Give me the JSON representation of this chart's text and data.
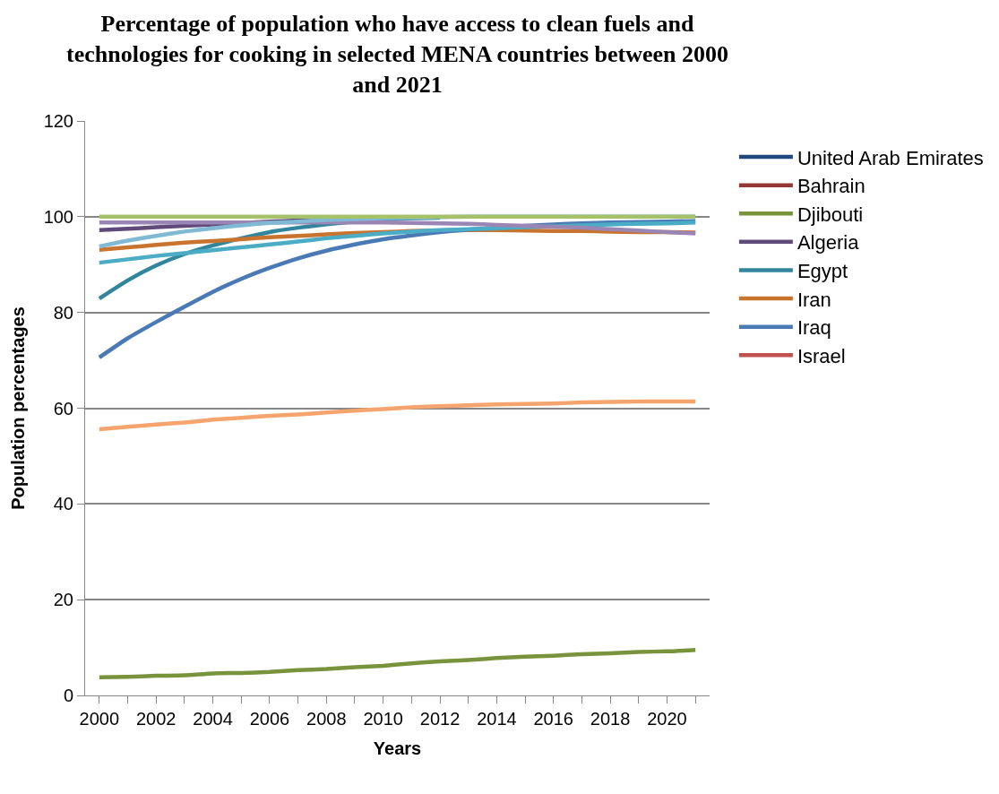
{
  "chart_data": {
    "type": "line",
    "title": "Percentage of population who have access to clean fuels and technologies for cooking in selected MENA countries between 2000 and 2021",
    "xlabel": "Years",
    "ylabel": "Population percentages",
    "x": [
      2000,
      2001,
      2002,
      2003,
      2004,
      2005,
      2006,
      2007,
      2008,
      2009,
      2010,
      2011,
      2012,
      2013,
      2014,
      2015,
      2016,
      2017,
      2018,
      2019,
      2020,
      2021
    ],
    "xlim": [
      1999.5,
      2021.5
    ],
    "xticks": [
      2000,
      {
        "value": 2001,
        "label": null
      },
      2002,
      {
        "value": 2003,
        "label": null
      },
      2004,
      {
        "value": 2005,
        "label": null
      },
      2006,
      {
        "value": 2007,
        "label": null
      },
      2008,
      {
        "value": 2009,
        "label": null
      },
      2010,
      {
        "value": 2011,
        "label": null
      },
      2012,
      {
        "value": 2013,
        "label": null
      },
      2014,
      {
        "value": 2015,
        "label": null
      },
      2016,
      {
        "value": 2017,
        "label": null
      },
      2018,
      {
        "value": 2019,
        "label": null
      },
      2020,
      {
        "value": 2021,
        "label": null
      }
    ],
    "ylim": [
      0,
      120
    ],
    "yticks": [
      0,
      20,
      40,
      60,
      80,
      100,
      120
    ],
    "grid": "y",
    "legend": "right",
    "line_style": "solid",
    "marker": "none",
    "series": [
      {
        "name": "United Arab Emirates",
        "color": "#1f497d",
        "values": [
          null,
          null,
          null,
          null,
          null,
          null,
          null,
          null,
          null,
          null,
          null,
          null,
          null,
          null,
          null,
          null,
          null,
          null,
          null,
          null,
          null,
          null
        ]
      },
      {
        "name": "Bahrain",
        "color": "#953735",
        "values": [
          null,
          null,
          null,
          null,
          null,
          null,
          null,
          null,
          null,
          null,
          null,
          null,
          null,
          null,
          null,
          null,
          null,
          null,
          null,
          null,
          null,
          null
        ]
      },
      {
        "name": "Djibouti",
        "color": "#77933c",
        "values": [
          3.8,
          3.9,
          4.1,
          4.2,
          4.6,
          4.7,
          4.9,
          5.3,
          5.5,
          5.9,
          6.2,
          6.7,
          7.1,
          7.4,
          7.8,
          8.1,
          8.3,
          8.6,
          8.8,
          9.1,
          9.2,
          9.5
        ]
      },
      {
        "name": "Algeria",
        "color": "#604a7b",
        "values": [
          97.2,
          97.5,
          97.8,
          98.1,
          98.4,
          98.7,
          99.0,
          99.2,
          99.4,
          99.6,
          99.7,
          99.8,
          99.9,
          null,
          null,
          null,
          null,
          null,
          null,
          null,
          null,
          null
        ]
      },
      {
        "name": "Egypt",
        "color": "#31859c",
        "values": [
          82.9,
          86.7,
          89.8,
          92.2,
          94.0,
          95.5,
          96.8,
          97.7,
          98.4,
          99.0,
          99.4,
          99.7,
          99.8,
          null,
          null,
          null,
          null,
          null,
          null,
          null,
          null,
          null
        ]
      },
      {
        "name": "Iran",
        "color": "#c8742f",
        "values": [
          93.1,
          93.6,
          94.1,
          94.6,
          94.9,
          95.3,
          95.7,
          96.0,
          96.3,
          96.6,
          96.8,
          97.0,
          97.1,
          97.2,
          97.2,
          97.1,
          97.0,
          97.0,
          96.9,
          96.8,
          96.8,
          96.7
        ]
      },
      {
        "name": "Iraq",
        "color": "#4a7ab5",
        "values": [
          70.6,
          74.6,
          78.0,
          81.2,
          84.3,
          87.0,
          89.3,
          91.3,
          92.9,
          94.2,
          95.3,
          96.1,
          96.8,
          97.3,
          97.7,
          98.1,
          98.4,
          98.6,
          98.8,
          98.9,
          99.0,
          99.1
        ]
      },
      {
        "name": "Israel",
        "color": "#c0504d",
        "values": [
          null,
          null,
          null,
          null,
          null,
          null,
          null,
          null,
          null,
          null,
          null,
          null,
          null,
          null,
          null,
          null,
          null,
          null,
          null,
          null,
          null,
          null
        ]
      },
      {
        "color": "#4bacc6",
        "values": [
          90.4,
          91.1,
          91.8,
          92.4,
          93.0,
          93.6,
          94.2,
          94.8,
          95.5,
          96.0,
          96.5,
          96.9,
          97.2,
          97.4,
          97.6,
          97.8,
          98.0,
          98.2,
          98.4,
          98.5,
          98.6,
          98.8
        ]
      },
      {
        "color": "#f5a46e",
        "values": [
          55.6,
          56.1,
          56.6,
          57.0,
          57.6,
          58.0,
          58.4,
          58.7,
          59.1,
          59.5,
          59.8,
          60.2,
          60.4,
          60.6,
          60.8,
          60.9,
          61.0,
          61.2,
          61.3,
          61.4,
          61.4,
          61.4
        ]
      },
      {
        "color": "#9a86b4",
        "values": [
          98.8,
          98.8,
          98.8,
          98.8,
          98.8,
          98.8,
          98.8,
          98.8,
          98.8,
          98.8,
          98.8,
          98.7,
          98.6,
          98.5,
          98.3,
          98.1,
          97.9,
          97.7,
          97.4,
          97.1,
          96.8,
          96.5
        ]
      },
      {
        "color": "#7fb9d3",
        "values": [
          93.8,
          95.0,
          96.0,
          96.9,
          97.6,
          98.2,
          98.7,
          99.0,
          99.3,
          99.5,
          99.7,
          99.8,
          99.9,
          100,
          100,
          100,
          100,
          100,
          100,
          100,
          100,
          100
        ]
      },
      {
        "color": "#a5c26a",
        "values": [
          100,
          100,
          100,
          100,
          100,
          100,
          100,
          100,
          100,
          100,
          100,
          100,
          100,
          100,
          100,
          100,
          100,
          100,
          100,
          100,
          100,
          100
        ]
      }
    ]
  }
}
